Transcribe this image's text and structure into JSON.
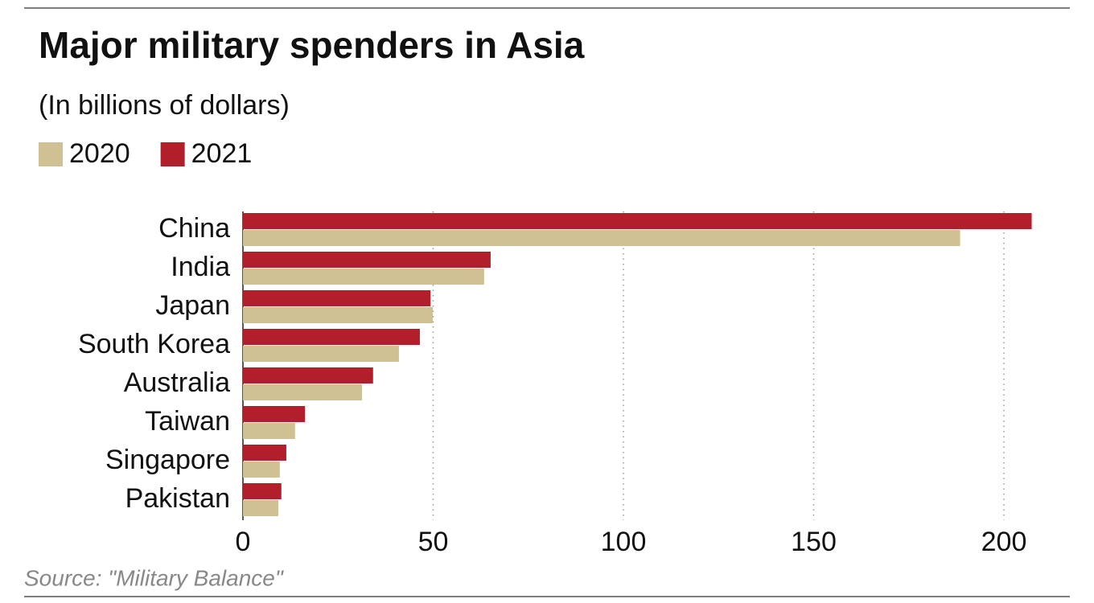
{
  "chart_data": {
    "type": "bar",
    "orientation": "horizontal",
    "title": "Major military spenders in Asia",
    "subtitle": "(In billions of dollars)",
    "source": "Source: \"Military Balance\"",
    "categories": [
      "China",
      "India",
      "Japan",
      "South Korea",
      "Australia",
      "Taiwan",
      "Singapore",
      "Pakistan"
    ],
    "series": [
      {
        "name": "2020",
        "color": "#cfc194",
        "values": [
          188.5,
          63.4,
          49.9,
          41.0,
          31.3,
          13.7,
          9.7,
          9.3
        ]
      },
      {
        "name": "2021",
        "color": "#b01f2a",
        "values": [
          207.3,
          65.1,
          49.3,
          46.5,
          34.2,
          16.3,
          11.4,
          10.1
        ]
      }
    ],
    "xlim": [
      0,
      210
    ],
    "xticks": [
      0,
      50,
      100,
      150,
      200
    ],
    "grid": true
  }
}
